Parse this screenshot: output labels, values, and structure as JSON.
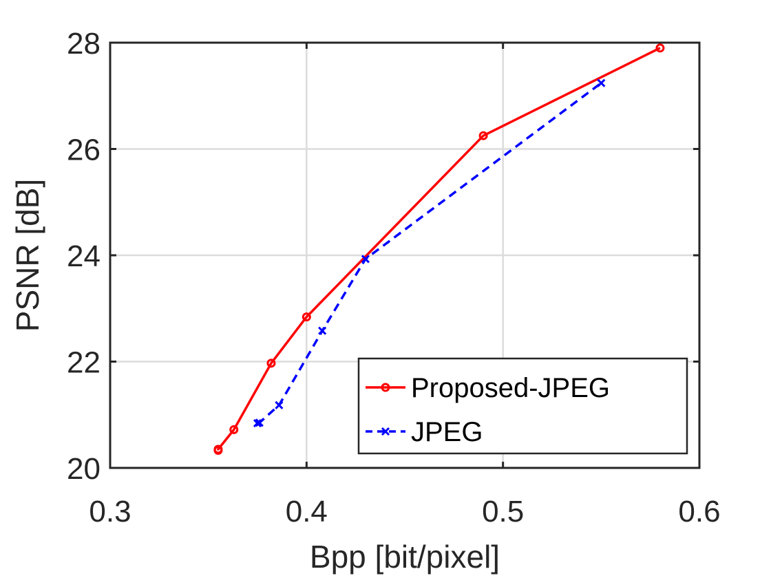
{
  "chart_data": {
    "type": "line",
    "title": "",
    "xlabel": "Bpp [bit/pixel]",
    "ylabel": "PSNR [dB]",
    "xlim": [
      0.3,
      0.6
    ],
    "ylim": [
      20,
      28
    ],
    "xticks": [
      0.3,
      0.4,
      0.5,
      0.6
    ],
    "xtick_labels": [
      "0.3",
      "0.4",
      "0.5",
      "0.6"
    ],
    "yticks": [
      20,
      22,
      24,
      26,
      28
    ],
    "ytick_labels": [
      "20",
      "22",
      "24",
      "26",
      "28"
    ],
    "grid": true,
    "legend_position": "bottom-right",
    "series": [
      {
        "name": "Proposed-JPEG",
        "color": "#ff0000",
        "line_style": "solid",
        "marker": "circle",
        "x": [
          0.355,
          0.355,
          0.363,
          0.382,
          0.4,
          0.49,
          0.58
        ],
        "y": [
          20.33,
          20.35,
          20.72,
          21.97,
          22.84,
          26.25,
          27.9
        ]
      },
      {
        "name": "JPEG",
        "color": "#0000ff",
        "line_style": "dashed",
        "marker": "x",
        "x": [
          0.375,
          0.376,
          0.386,
          0.408,
          0.43,
          0.55
        ],
        "y": [
          20.84,
          20.85,
          21.18,
          22.58,
          23.93,
          27.24
        ]
      }
    ]
  }
}
